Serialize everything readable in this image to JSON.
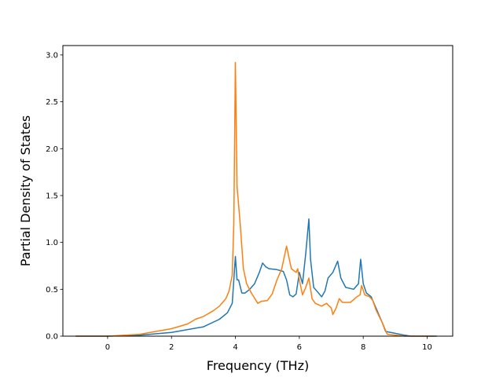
{
  "chart_data": {
    "type": "line",
    "title": "",
    "xlabel": "Frequency (THz)",
    "ylabel": "Partial Density of States",
    "xlim": [
      -1.4,
      10.8
    ],
    "ylim": [
      0,
      3.1
    ],
    "xticks": [
      0,
      2,
      4,
      6,
      8,
      10
    ],
    "yticks": [
      0.0,
      0.5,
      1.0,
      1.5,
      2.0,
      2.5,
      3.0
    ],
    "xtick_labels": [
      "0",
      "2",
      "4",
      "6",
      "8",
      "10"
    ],
    "ytick_labels": [
      "0.0",
      "0.5",
      "1.0",
      "1.5",
      "2.0",
      "2.5",
      "3.0"
    ],
    "grid": false,
    "legend": "none",
    "series": [
      {
        "color": "#1f77b4",
        "points": [
          [
            -1.0,
            0.0
          ],
          [
            0.0,
            0.0
          ],
          [
            1.0,
            0.01
          ],
          [
            2.0,
            0.04
          ],
          [
            3.0,
            0.1
          ],
          [
            3.5,
            0.18
          ],
          [
            3.75,
            0.25
          ],
          [
            3.9,
            0.35
          ],
          [
            3.95,
            0.6
          ],
          [
            4.0,
            0.85
          ],
          [
            4.05,
            0.6
          ],
          [
            4.1,
            0.6
          ],
          [
            4.2,
            0.46
          ],
          [
            4.3,
            0.46
          ],
          [
            4.45,
            0.5
          ],
          [
            4.6,
            0.56
          ],
          [
            4.75,
            0.68
          ],
          [
            4.85,
            0.78
          ],
          [
            4.95,
            0.74
          ],
          [
            5.05,
            0.72
          ],
          [
            5.3,
            0.71
          ],
          [
            5.5,
            0.69
          ],
          [
            5.6,
            0.6
          ],
          [
            5.7,
            0.44
          ],
          [
            5.8,
            0.42
          ],
          [
            5.9,
            0.45
          ],
          [
            6.0,
            0.68
          ],
          [
            6.1,
            0.56
          ],
          [
            6.2,
            0.88
          ],
          [
            6.3,
            1.25
          ],
          [
            6.35,
            0.82
          ],
          [
            6.45,
            0.52
          ],
          [
            6.55,
            0.48
          ],
          [
            6.7,
            0.42
          ],
          [
            6.8,
            0.48
          ],
          [
            6.9,
            0.62
          ],
          [
            7.05,
            0.68
          ],
          [
            7.15,
            0.76
          ],
          [
            7.2,
            0.8
          ],
          [
            7.3,
            0.62
          ],
          [
            7.45,
            0.52
          ],
          [
            7.7,
            0.5
          ],
          [
            7.85,
            0.56
          ],
          [
            7.92,
            0.82
          ],
          [
            8.0,
            0.56
          ],
          [
            8.1,
            0.46
          ],
          [
            8.25,
            0.42
          ],
          [
            8.4,
            0.3
          ],
          [
            8.6,
            0.14
          ],
          [
            8.7,
            0.05
          ],
          [
            9.0,
            0.03
          ],
          [
            9.3,
            0.01
          ],
          [
            9.5,
            0.0
          ],
          [
            10.3,
            0.0
          ]
        ]
      },
      {
        "color": "#ff7f0e",
        "points": [
          [
            -1.0,
            0.0
          ],
          [
            0.0,
            0.0
          ],
          [
            1.0,
            0.02
          ],
          [
            2.0,
            0.08
          ],
          [
            2.5,
            0.13
          ],
          [
            2.75,
            0.18
          ],
          [
            3.0,
            0.21
          ],
          [
            3.3,
            0.27
          ],
          [
            3.5,
            0.32
          ],
          [
            3.7,
            0.4
          ],
          [
            3.8,
            0.48
          ],
          [
            3.9,
            0.65
          ],
          [
            3.95,
            1.2
          ],
          [
            4.0,
            2.92
          ],
          [
            4.05,
            1.6
          ],
          [
            4.15,
            1.2
          ],
          [
            4.25,
            0.72
          ],
          [
            4.35,
            0.56
          ],
          [
            4.5,
            0.46
          ],
          [
            4.7,
            0.35
          ],
          [
            4.8,
            0.37
          ],
          [
            5.0,
            0.38
          ],
          [
            5.15,
            0.45
          ],
          [
            5.3,
            0.6
          ],
          [
            5.45,
            0.72
          ],
          [
            5.6,
            0.96
          ],
          [
            5.75,
            0.72
          ],
          [
            5.9,
            0.68
          ],
          [
            5.95,
            0.72
          ],
          [
            6.0,
            0.6
          ],
          [
            6.1,
            0.44
          ],
          [
            6.2,
            0.52
          ],
          [
            6.3,
            0.62
          ],
          [
            6.4,
            0.4
          ],
          [
            6.5,
            0.35
          ],
          [
            6.7,
            0.32
          ],
          [
            6.85,
            0.35
          ],
          [
            7.0,
            0.3
          ],
          [
            7.05,
            0.23
          ],
          [
            7.15,
            0.3
          ],
          [
            7.25,
            0.4
          ],
          [
            7.35,
            0.36
          ],
          [
            7.6,
            0.36
          ],
          [
            7.8,
            0.42
          ],
          [
            7.9,
            0.44
          ],
          [
            7.95,
            0.54
          ],
          [
            8.05,
            0.44
          ],
          [
            8.2,
            0.42
          ],
          [
            8.3,
            0.38
          ],
          [
            8.4,
            0.28
          ],
          [
            8.6,
            0.14
          ],
          [
            8.75,
            0.02
          ],
          [
            9.3,
            0.0
          ],
          [
            10.2,
            0.0
          ]
        ]
      }
    ]
  }
}
